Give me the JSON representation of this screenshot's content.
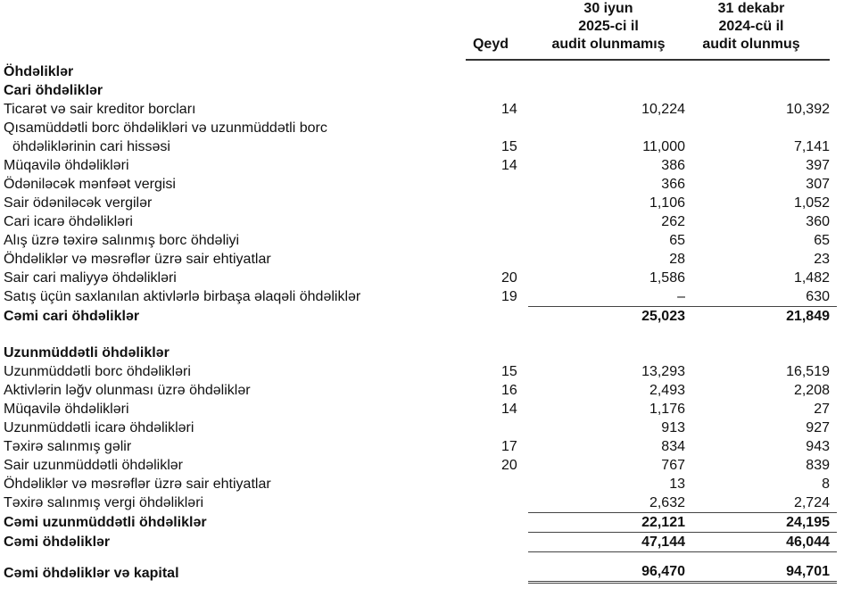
{
  "header": {
    "qeyd": "Qeyd",
    "col1": [
      "30 iyun",
      "2025-ci il",
      "audit olunmamış"
    ],
    "col2": [
      "31 dekabr",
      "2024-cü il",
      "audit olunmuş"
    ]
  },
  "rows": [
    {
      "label": "Öhdəliklər",
      "note": "",
      "v1": "",
      "v2": "",
      "style": "bold"
    },
    {
      "label": "Cari öhdəliklər",
      "note": "",
      "v1": "",
      "v2": "",
      "style": "bold"
    },
    {
      "label": "Ticarət və sair kreditor borcları",
      "note": "14",
      "v1": "10,224",
      "v2": "10,392"
    },
    {
      "label": "Qısamüddətli borc öhdəlikləri və uzunmüddətli borc",
      "note": "",
      "v1": "",
      "v2": ""
    },
    {
      "label": "öhdəliklərinin cari hissəsi",
      "note": "15",
      "v1": "11,000",
      "v2": "7,141",
      "style": "indent"
    },
    {
      "label": "Müqavilə öhdəlikləri",
      "note": "14",
      "v1": "386",
      "v2": "397"
    },
    {
      "label": "Ödəniləcək mənfəət vergisi",
      "note": "",
      "v1": "366",
      "v2": "307"
    },
    {
      "label": "Sair ödəniləcək vergilər",
      "note": "",
      "v1": "1,106",
      "v2": "1,052"
    },
    {
      "label": "Cari icarə öhdəlikləri",
      "note": "",
      "v1": "262",
      "v2": "360"
    },
    {
      "label": "Alış üzrə təxirə salınmış borc öhdəliyi",
      "note": "",
      "v1": "65",
      "v2": "65"
    },
    {
      "label": "Öhdəliklər və məsrəflər üzrə sair ehtiyatlar",
      "note": "",
      "v1": "28",
      "v2": "23"
    },
    {
      "label": "Sair cari maliyyə öhdəlikləri",
      "note": "20",
      "v1": "1,586",
      "v2": "1,482"
    },
    {
      "label": "Satış üçün saxlanılan aktivlərlə birbaşa əlaqəli öhdəliklər",
      "note": "19",
      "v1": "–",
      "v2": "630"
    },
    {
      "label": "Cəmi cari öhdəliklər",
      "note": "",
      "v1": "25,023",
      "v2": "21,849",
      "style": "bold topline"
    },
    {
      "label": "",
      "note": "",
      "v1": "",
      "v2": "",
      "style": "gap"
    },
    {
      "label": "Uzunmüddətli öhdəliklər",
      "note": "",
      "v1": "",
      "v2": "",
      "style": "bold"
    },
    {
      "label": "Uzunmüddətli borc öhdəlikləri",
      "note": "15",
      "v1": "13,293",
      "v2": "16,519"
    },
    {
      "label": "Aktivlərin ləğv olunması üzrə öhdəliklər",
      "note": "16",
      "v1": "2,493",
      "v2": "2,208"
    },
    {
      "label": "Müqavilə öhdəlikləri",
      "note": "14",
      "v1": "1,176",
      "v2": "27"
    },
    {
      "label": "Uzunmüddətli icarə öhdəlikləri",
      "note": "",
      "v1": "913",
      "v2": "927"
    },
    {
      "label": "Təxirə salınmış gəlir",
      "note": "17",
      "v1": "834",
      "v2": "943"
    },
    {
      "label": "Sair uzunmüddətli öhdəliklər",
      "note": "20",
      "v1": "767",
      "v2": "839"
    },
    {
      "label": "Öhdəliklər və məsrəflər üzrə sair ehtiyatlar",
      "note": "",
      "v1": "13",
      "v2": "8"
    },
    {
      "label": "Təxirə salınmış vergi öhdəlikləri",
      "note": "",
      "v1": "2,632",
      "v2": "2,724"
    },
    {
      "label": "Cəmi uzunmüddətli öhdəliklər",
      "note": "",
      "v1": "22,121",
      "v2": "24,195",
      "style": "bold topline"
    },
    {
      "label": "Cəmi öhdəliklər",
      "note": "",
      "v1": "47,144",
      "v2": "46,044",
      "style": "bold topline"
    },
    {
      "label": "Cəmi öhdəliklər və kapital",
      "note": "",
      "v1": "96,470",
      "v2": "94,701",
      "style": "bold topline dbl tall"
    }
  ]
}
